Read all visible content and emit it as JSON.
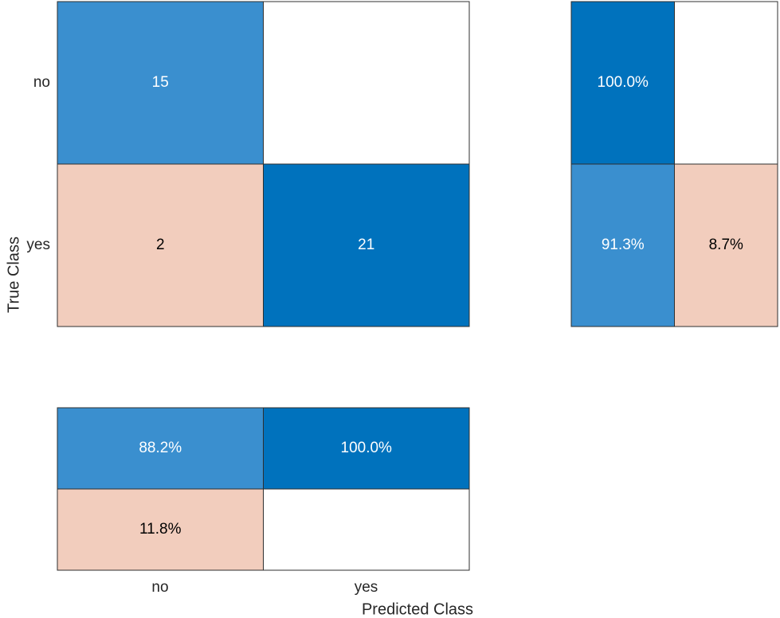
{
  "chart_data": {
    "type": "heatmap",
    "class_labels": [
      "no",
      "yes"
    ],
    "xlabel": "Predicted Class",
    "ylabel": "True Class",
    "colors": {
      "correct_strong": "#0072BD",
      "correct_light": "#3A8FCF",
      "incorrect": "#F2CDBD",
      "empty": "#FFFFFF",
      "border": "#2F2F2F",
      "text_on_dark": "#FFFFFF",
      "text_on_light": "#000000"
    },
    "matrix": {
      "values": [
        [
          15,
          null
        ],
        [
          2,
          21
        ]
      ],
      "labels": [
        [
          "15",
          ""
        ],
        [
          "2",
          "21"
        ]
      ],
      "fills": [
        [
          "correct_light",
          "empty"
        ],
        [
          "incorrect",
          "correct_strong"
        ]
      ]
    },
    "row_summary": {
      "values": [
        [
          100.0,
          null
        ],
        [
          91.3,
          8.7
        ]
      ],
      "labels": [
        [
          "100.0%",
          ""
        ],
        [
          "91.3%",
          "8.7%"
        ]
      ],
      "fills": [
        [
          "correct_strong",
          "empty"
        ],
        [
          "correct_light",
          "incorrect"
        ]
      ]
    },
    "column_summary": {
      "values": [
        [
          88.2,
          100.0
        ],
        [
          11.8,
          null
        ]
      ],
      "labels": [
        [
          "88.2%",
          "100.0%"
        ],
        [
          "11.8%",
          ""
        ]
      ],
      "fills": [
        [
          "correct_light",
          "correct_strong"
        ],
        [
          "incorrect",
          "empty"
        ]
      ]
    }
  }
}
